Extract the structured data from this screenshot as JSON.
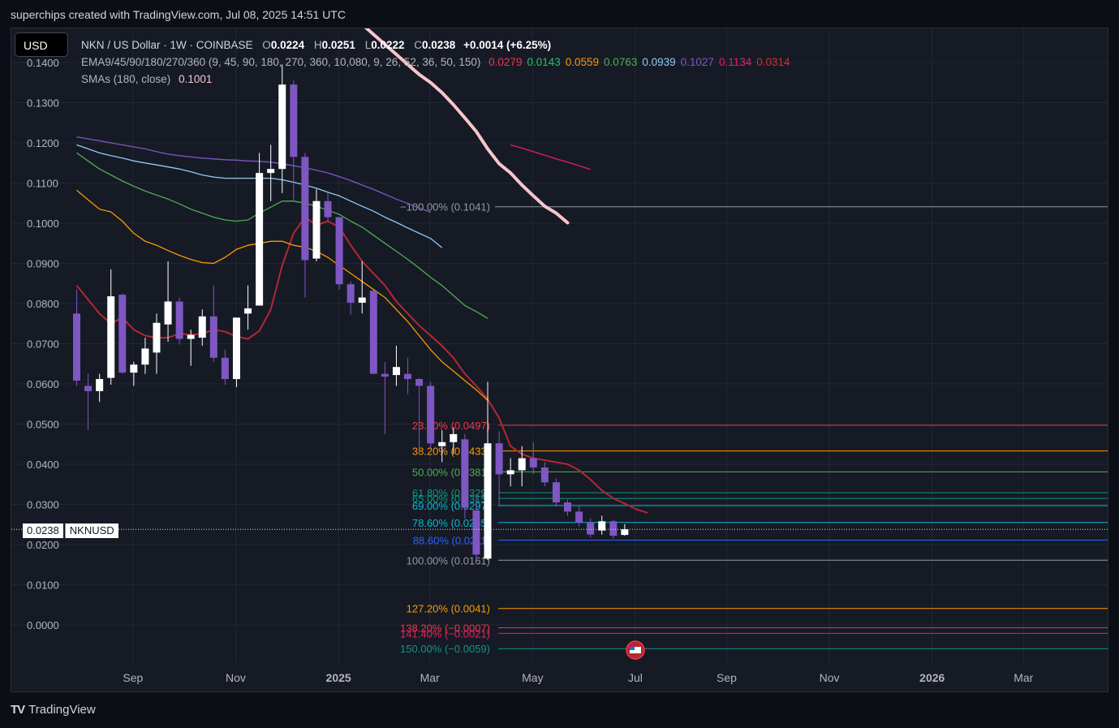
{
  "header": {
    "text": "superchips created with TradingView.com, Jul 08, 2025 14:51 UTC"
  },
  "currency_button": {
    "label": "USD"
  },
  "legend": {
    "symbol": "NKN / US Dollar · 1W · COINBASE",
    "o_key": "O",
    "o_val": "0.0224",
    "h_key": "H",
    "h_val": "0.0251",
    "l_key": "L",
    "l_val": "0.0222",
    "c_key": "C",
    "c_val": "0.0238",
    "change": "+0.0014 (+6.25%)",
    "ema_label": "EMA9/45/90/180/270/360 (9, 45, 90, 180, 270, 360, 10,080, 9, 26, 52, 36, 50, 150)",
    "ema_values": [
      {
        "text": "0.0279",
        "color": "#f23645"
      },
      {
        "text": "0.0143",
        "color": "#22c55e"
      },
      {
        "text": "0.0559",
        "color": "#ff9800"
      },
      {
        "text": "0.0763",
        "color": "#4caf50"
      },
      {
        "text": "0.0939",
        "color": "#90caf9"
      },
      {
        "text": "0.1027",
        "color": "#7e57c2"
      },
      {
        "text": "0.1134",
        "color": "#e91e63"
      },
      {
        "text": "0.0314",
        "color": "#d32f2f"
      }
    ],
    "sma_label": "SMAs (180, close)",
    "sma_value": "0.1001"
  },
  "price_tag": {
    "price": "0.0238",
    "symbol": "NKNUSD"
  },
  "footer": {
    "logo_text": "TV",
    "brand": "TradingView"
  },
  "chart_data": {
    "type": "candlestick",
    "symbol": "NKNUSD",
    "interval": "1W",
    "y_ticks": [
      "0.0000",
      "0.0100",
      "0.0200",
      "0.0300",
      "0.0400",
      "0.0500",
      "0.0600",
      "0.0700",
      "0.0800",
      "0.0900",
      "0.1000",
      "0.1100",
      "0.1200",
      "0.1300",
      "0.1400"
    ],
    "ylim": [
      -0.0065,
      0.145
    ],
    "x_ticks": [
      {
        "label": "Sep",
        "idx": 5,
        "bold": false
      },
      {
        "label": "Nov",
        "idx": 14,
        "bold": false
      },
      {
        "label": "2025",
        "idx": 23,
        "bold": true
      },
      {
        "label": "Mar",
        "idx": 31,
        "bold": false
      },
      {
        "label": "May",
        "idx": 40,
        "bold": false
      },
      {
        "label": "Jul",
        "idx": 49,
        "bold": false
      },
      {
        "label": "Sep",
        "idx": 57,
        "bold": false
      },
      {
        "label": "Nov",
        "idx": 66,
        "bold": false
      },
      {
        "label": "2026",
        "idx": 75,
        "bold": true
      },
      {
        "label": "Mar",
        "idx": 83,
        "bold": false
      }
    ],
    "candles": [
      {
        "o": 0.0775,
        "h": 0.0835,
        "l": 0.0595,
        "c": 0.0608
      },
      {
        "o": 0.0595,
        "h": 0.0625,
        "l": 0.0485,
        "c": 0.0582
      },
      {
        "o": 0.0582,
        "h": 0.0625,
        "l": 0.0555,
        "c": 0.0612
      },
      {
        "o": 0.0615,
        "h": 0.0885,
        "l": 0.0598,
        "c": 0.0818
      },
      {
        "o": 0.0822,
        "h": 0.0825,
        "l": 0.0625,
        "c": 0.0628
      },
      {
        "o": 0.0628,
        "h": 0.0655,
        "l": 0.0595,
        "c": 0.0648
      },
      {
        "o": 0.0648,
        "h": 0.0715,
        "l": 0.0625,
        "c": 0.0688
      },
      {
        "o": 0.0678,
        "h": 0.0775,
        "l": 0.0625,
        "c": 0.0752
      },
      {
        "o": 0.0748,
        "h": 0.0905,
        "l": 0.0705,
        "c": 0.0805
      },
      {
        "o": 0.0805,
        "h": 0.0815,
        "l": 0.0698,
        "c": 0.0712
      },
      {
        "o": 0.0712,
        "h": 0.0735,
        "l": 0.0645,
        "c": 0.0722
      },
      {
        "o": 0.0715,
        "h": 0.0785,
        "l": 0.0695,
        "c": 0.0768
      },
      {
        "o": 0.0768,
        "h": 0.0845,
        "l": 0.0655,
        "c": 0.0665
      },
      {
        "o": 0.0665,
        "h": 0.0685,
        "l": 0.0598,
        "c": 0.0612
      },
      {
        "o": 0.0612,
        "h": 0.0765,
        "l": 0.0592,
        "c": 0.0765
      },
      {
        "o": 0.0775,
        "h": 0.0845,
        "l": 0.0735,
        "c": 0.0788
      },
      {
        "o": 0.0795,
        "h": 0.1175,
        "l": 0.0795,
        "c": 0.1125
      },
      {
        "o": 0.1125,
        "h": 0.1195,
        "l": 0.1055,
        "c": 0.1135
      },
      {
        "o": 0.1135,
        "h": 0.1395,
        "l": 0.1075,
        "c": 0.1345
      },
      {
        "o": 0.1345,
        "h": 0.1355,
        "l": 0.1055,
        "c": 0.1165
      },
      {
        "o": 0.1165,
        "h": 0.1175,
        "l": 0.0815,
        "c": 0.0908
      },
      {
        "o": 0.0912,
        "h": 0.1085,
        "l": 0.0905,
        "c": 0.1055
      },
      {
        "o": 0.1055,
        "h": 0.1075,
        "l": 0.1005,
        "c": 0.1015
      },
      {
        "o": 0.1015,
        "h": 0.1015,
        "l": 0.0835,
        "c": 0.0848
      },
      {
        "o": 0.0848,
        "h": 0.0855,
        "l": 0.0772,
        "c": 0.0802
      },
      {
        "o": 0.0802,
        "h": 0.0905,
        "l": 0.0775,
        "c": 0.0815
      },
      {
        "o": 0.0832,
        "h": 0.0835,
        "l": 0.0625,
        "c": 0.0625
      },
      {
        "o": 0.0625,
        "h": 0.0655,
        "l": 0.0475,
        "c": 0.0618
      },
      {
        "o": 0.0622,
        "h": 0.0695,
        "l": 0.0595,
        "c": 0.0642
      },
      {
        "o": 0.0625,
        "h": 0.0665,
        "l": 0.0575,
        "c": 0.0612
      },
      {
        "o": 0.0612,
        "h": 0.0615,
        "l": 0.0425,
        "c": 0.0595
      },
      {
        "o": 0.0595,
        "h": 0.0605,
        "l": 0.0442,
        "c": 0.0452
      },
      {
        "o": 0.0445,
        "h": 0.0485,
        "l": 0.0405,
        "c": 0.0455
      },
      {
        "o": 0.0455,
        "h": 0.0492,
        "l": 0.0425,
        "c": 0.0475
      },
      {
        "o": 0.0462,
        "h": 0.0475,
        "l": 0.0265,
        "c": 0.0292
      },
      {
        "o": 0.0285,
        "h": 0.0325,
        "l": 0.0155,
        "c": 0.0175
      },
      {
        "o": 0.0165,
        "h": 0.0605,
        "l": 0.0161,
        "c": 0.0452
      },
      {
        "o": 0.0452,
        "h": 0.0482,
        "l": 0.0295,
        "c": 0.0375
      },
      {
        "o": 0.0375,
        "h": 0.0415,
        "l": 0.0345,
        "c": 0.0385
      },
      {
        "o": 0.0385,
        "h": 0.0445,
        "l": 0.0345,
        "c": 0.0415
      },
      {
        "o": 0.0415,
        "h": 0.0455,
        "l": 0.0375,
        "c": 0.0392
      },
      {
        "o": 0.0392,
        "h": 0.0405,
        "l": 0.0345,
        "c": 0.0355
      },
      {
        "o": 0.0355,
        "h": 0.0365,
        "l": 0.0295,
        "c": 0.0305
      },
      {
        "o": 0.0305,
        "h": 0.0312,
        "l": 0.0272,
        "c": 0.0282
      },
      {
        "o": 0.0282,
        "h": 0.0295,
        "l": 0.0245,
        "c": 0.0255
      },
      {
        "o": 0.0255,
        "h": 0.0265,
        "l": 0.0218,
        "c": 0.0225
      },
      {
        "o": 0.0235,
        "h": 0.0272,
        "l": 0.0225,
        "c": 0.0258
      },
      {
        "o": 0.0258,
        "h": 0.0262,
        "l": 0.0215,
        "c": 0.0222
      },
      {
        "o": 0.0224,
        "h": 0.0251,
        "l": 0.0222,
        "c": 0.0238
      }
    ],
    "ema_lines": [
      {
        "name": "ema-9",
        "color": "#b22833",
        "width": 2,
        "start": 0,
        "values": [
          0.0845,
          0.081,
          0.0775,
          0.075,
          0.0765,
          0.0735,
          0.072,
          0.0715,
          0.0715,
          0.0725,
          0.0722,
          0.0725,
          0.0735,
          0.073,
          0.0718,
          0.0712,
          0.0732,
          0.0785,
          0.0895,
          0.0975,
          0.1015,
          0.0995,
          0.1005,
          0.099,
          0.0945,
          0.0905,
          0.0875,
          0.0845,
          0.0805,
          0.0775,
          0.0745,
          0.072,
          0.0695,
          0.0665,
          0.0625,
          0.0595,
          0.0562,
          0.0515,
          0.0445,
          0.0425,
          0.0415,
          0.041,
          0.0405,
          0.04,
          0.0385,
          0.0362,
          0.0335,
          0.0315,
          0.0302,
          0.0288,
          0.0279
        ]
      },
      {
        "name": "ema-orange",
        "color": "#ff9800",
        "width": 1.3,
        "start": 0,
        "values": [
          0.1082,
          0.1058,
          0.1035,
          0.1028,
          0.1005,
          0.0975,
          0.0955,
          0.0945,
          0.0932,
          0.092,
          0.091,
          0.0902,
          0.09,
          0.0915,
          0.0935,
          0.0945,
          0.095,
          0.0955,
          0.0955,
          0.0945,
          0.094,
          0.093,
          0.0915,
          0.0895,
          0.0875,
          0.0855,
          0.0835,
          0.0815,
          0.0785,
          0.0755,
          0.072,
          0.0685,
          0.0655,
          0.0632,
          0.0608,
          0.0585,
          0.0559
        ]
      },
      {
        "name": "ema-green",
        "color": "#4caf50",
        "width": 1.3,
        "start": 0,
        "values": [
          0.1175,
          0.1155,
          0.1135,
          0.112,
          0.1105,
          0.1092,
          0.108,
          0.107,
          0.106,
          0.1048,
          0.1035,
          0.1025,
          0.1015,
          0.1008,
          0.1005,
          0.1008,
          0.1025,
          0.104,
          0.1055,
          0.1055,
          0.105,
          0.1042,
          0.1032,
          0.1022,
          0.1005,
          0.099,
          0.097,
          0.095,
          0.093,
          0.091,
          0.0888,
          0.0865,
          0.0845,
          0.082,
          0.0795,
          0.078,
          0.0763
        ]
      },
      {
        "name": "ema-lightblue",
        "color": "#90caf9",
        "width": 1.3,
        "start": 0,
        "values": [
          0.1195,
          0.1185,
          0.1175,
          0.1168,
          0.1162,
          0.1155,
          0.115,
          0.1145,
          0.114,
          0.1135,
          0.1128,
          0.112,
          0.1115,
          0.1112,
          0.1112,
          0.1112,
          0.1112,
          0.1112,
          0.1108,
          0.1102,
          0.1095,
          0.1087,
          0.1077,
          0.1068,
          0.1055,
          0.1042,
          0.103,
          0.1015,
          0.1002,
          0.0988,
          0.0975,
          0.0962,
          0.0939
        ]
      },
      {
        "name": "ema-purple",
        "color": "#7e57c2",
        "width": 1.3,
        "start": 0,
        "values": [
          0.1215,
          0.121,
          0.1205,
          0.12,
          0.1195,
          0.119,
          0.1185,
          0.1178,
          0.1172,
          0.1168,
          0.1165,
          0.1162,
          0.116,
          0.1158,
          0.1157,
          0.1155,
          0.1154,
          0.1152,
          0.1148,
          0.1143,
          0.1138,
          0.1132,
          0.1125,
          0.1116,
          0.1106,
          0.1095,
          0.1084,
          0.1072,
          0.106,
          0.1049,
          0.1038,
          0.1027
        ]
      },
      {
        "name": "ema-pink",
        "color": "#e91e63",
        "width": 1.3,
        "start": 38,
        "values": [
          0.1195,
          0.1187,
          0.1178,
          0.1169,
          0.116,
          0.1152,
          0.1143,
          0.1134
        ]
      }
    ],
    "sma_line": {
      "name": "sma-180",
      "color": "#f7c5cc",
      "width": 4,
      "start": 25,
      "values": [
        0.1495,
        0.147,
        0.1445,
        0.142,
        0.1395,
        0.137,
        0.135,
        0.1325,
        0.1295,
        0.1262,
        0.1228,
        0.1185,
        0.1148,
        0.1125,
        0.1095,
        0.1068,
        0.1042,
        0.1025,
        0.1001
      ]
    },
    "fib_levels": [
      {
        "label": "−100.00% (0.1041)",
        "value": 0.1041,
        "color": "#9598a1"
      },
      {
        "label": "23.60% (0.0497)",
        "value": 0.0497,
        "color": "#f23645"
      },
      {
        "label": "38.20% (0.0433)",
        "value": 0.0433,
        "color": "#ff9800"
      },
      {
        "label": "50.00% (0.0381)",
        "value": 0.0381,
        "color": "#4caf50"
      },
      {
        "label": "61.80% (0.0329)",
        "value": 0.0329,
        "color": "#089981"
      },
      {
        "label": "65.00% (0.0315)",
        "value": 0.0315,
        "color": "#089981"
      },
      {
        "label": "69.00% (0.0297)",
        "value": 0.0297,
        "color": "#00bcd4"
      },
      {
        "label": "78.60% (0.0255)",
        "value": 0.0255,
        "color": "#00bcd4"
      },
      {
        "label": "88.60% (0.0211)",
        "value": 0.0211,
        "color": "#2962ff"
      },
      {
        "label": "100.00% (0.0161)",
        "value": 0.0161,
        "color": "#9598a1"
      },
      {
        "label": "127.20% (0.0041)",
        "value": 0.0041,
        "color": "#ff9800"
      },
      {
        "label": "138.20% (−0.0007)",
        "value": -0.0007,
        "color": "#f23645"
      },
      {
        "label": "141.40% (−0.0021)",
        "value": -0.0021,
        "color": "#e91e63"
      },
      {
        "label": "150.00% (−0.0059)",
        "value": -0.0059,
        "color": "#089981"
      }
    ],
    "last_price": 0.0238
  }
}
